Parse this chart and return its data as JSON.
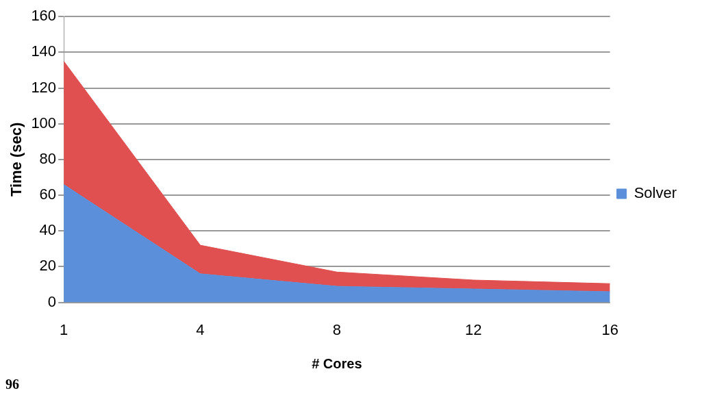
{
  "chart_data": {
    "type": "area",
    "stacked": true,
    "xlabel": "# Cores",
    "ylabel": "Time (sec)",
    "categories": [
      "1",
      "4",
      "8",
      "12",
      "16"
    ],
    "series": [
      {
        "name": "Solver",
        "color": "#5b8fd9",
        "values": [
          66,
          16,
          9,
          7.5,
          6
        ]
      },
      {
        "color": "#e05050",
        "values": [
          69,
          16,
          8,
          5,
          4.5
        ]
      }
    ],
    "ylim": [
      0,
      160
    ],
    "yticks": [
      0,
      20,
      40,
      60,
      80,
      100,
      120,
      140,
      160
    ],
    "grid": "y",
    "legend": "right",
    "annotations": [
      "96"
    ]
  }
}
